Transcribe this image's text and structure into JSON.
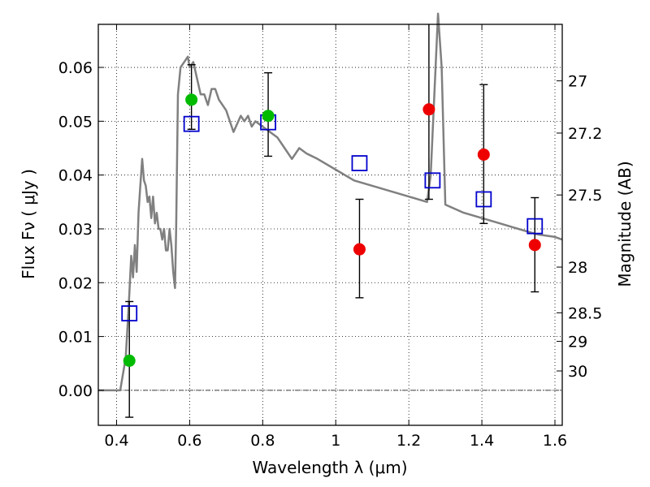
{
  "chart_data": {
    "type": "scatter",
    "title": "",
    "xlabel": "Wavelength  λ (μm)",
    "ylabel": "Flux  Fν  ( μJy )",
    "ylabel_right": "Magnitude (AB)",
    "xlim": [
      0.35,
      1.62
    ],
    "ylim": [
      -0.0065,
      0.068
    ],
    "grid": true,
    "x_ticks": [
      0.4,
      0.6,
      0.8,
      1.0,
      1.2,
      1.4,
      1.6
    ],
    "x_tick_labels": [
      "0.4",
      "0.6",
      "0.8",
      "1",
      "1.2",
      "1.4",
      "1.6"
    ],
    "y_ticks": [
      0.0,
      0.01,
      0.02,
      0.03,
      0.04,
      0.05,
      0.06
    ],
    "y_tick_labels": [
      "0.00",
      "0.01",
      "0.02",
      "0.03",
      "0.04",
      "0.05",
      "0.06"
    ],
    "right_ticks": [
      {
        "label": "27",
        "flux": 0.0575
      },
      {
        "label": "27.2",
        "flux": 0.0478
      },
      {
        "label": "27.5",
        "flux": 0.0363
      },
      {
        "label": "28",
        "flux": 0.0229
      },
      {
        "label": "28.5",
        "flux": 0.0144
      },
      {
        "label": "29",
        "flux": 0.0091
      },
      {
        "label": "30",
        "flux": 0.0036
      }
    ],
    "colors": {
      "template": "#808080",
      "detections": "#00bb00",
      "nondetections": "#ee0000",
      "model_points": "#0000cc",
      "errorbars": "#000000"
    },
    "series": [
      {
        "kind": "line",
        "x": [
          0.35,
          0.41,
          0.415,
          0.425,
          0.43,
          0.435,
          0.44,
          0.445,
          0.45,
          0.455,
          0.46,
          0.465,
          0.47,
          0.475,
          0.48,
          0.485,
          0.49,
          0.495,
          0.5,
          0.505,
          0.51,
          0.515,
          0.52,
          0.525,
          0.53,
          0.535,
          0.54,
          0.545,
          0.55,
          0.555,
          0.56,
          0.563,
          0.568,
          0.575,
          0.585,
          0.595,
          0.6,
          0.61,
          0.62,
          0.63,
          0.64,
          0.65,
          0.66,
          0.67,
          0.68,
          0.7,
          0.72,
          0.74,
          0.75,
          0.76,
          0.77,
          0.78,
          0.8,
          0.82,
          0.84,
          0.86,
          0.88,
          0.9,
          0.92,
          0.95,
          1.0,
          1.05,
          1.1,
          1.15,
          1.2,
          1.25,
          1.26,
          1.27,
          1.28,
          1.29,
          1.3,
          1.35,
          1.4,
          1.45,
          1.5,
          1.55,
          1.6,
          1.62
        ],
        "y": [
          0.0,
          0.0,
          0.002,
          0.006,
          0.012,
          0.018,
          0.025,
          0.021,
          0.027,
          0.022,
          0.033,
          0.038,
          0.043,
          0.039,
          0.038,
          0.035,
          0.036,
          0.032,
          0.036,
          0.031,
          0.033,
          0.03,
          0.03,
          0.028,
          0.03,
          0.026,
          0.026,
          0.03,
          0.027,
          0.022,
          0.019,
          0.03,
          0.055,
          0.06,
          0.061,
          0.062,
          0.06,
          0.061,
          0.058,
          0.055,
          0.055,
          0.053,
          0.056,
          0.056,
          0.054,
          0.052,
          0.048,
          0.051,
          0.05,
          0.051,
          0.049,
          0.05,
          0.049,
          0.048,
          0.047,
          0.045,
          0.043,
          0.045,
          0.044,
          0.043,
          0.041,
          0.039,
          0.038,
          0.037,
          0.036,
          0.035,
          0.04,
          0.055,
          0.07,
          0.06,
          0.0345,
          0.033,
          0.032,
          0.031,
          0.03,
          0.029,
          0.0285,
          0.028
        ]
      },
      {
        "kind": "points_with_errors",
        "name": "detections",
        "x": [
          0.435,
          0.605,
          0.815
        ],
        "y": [
          0.0055,
          0.054,
          0.051
        ],
        "err_low": [
          -0.005,
          0.0485,
          0.0435
        ],
        "err_high": [
          0.0165,
          0.0605,
          0.059
        ]
      },
      {
        "kind": "points_with_errors",
        "name": "nondetections",
        "x": [
          1.065,
          1.255,
          1.405,
          1.545
        ],
        "y": [
          0.0262,
          0.0522,
          0.0438,
          0.027
        ],
        "err_low": [
          0.0172,
          0.0355,
          0.031,
          0.0183
        ],
        "err_high": [
          0.0355,
          0.07,
          0.0568,
          0.0358
        ]
      },
      {
        "kind": "open_squares",
        "name": "model_points",
        "x": [
          0.435,
          0.605,
          0.815,
          1.065,
          1.265,
          1.405,
          1.545
        ],
        "y": [
          0.0143,
          0.0495,
          0.0498,
          0.0422,
          0.039,
          0.0355,
          0.0305
        ]
      }
    ]
  }
}
